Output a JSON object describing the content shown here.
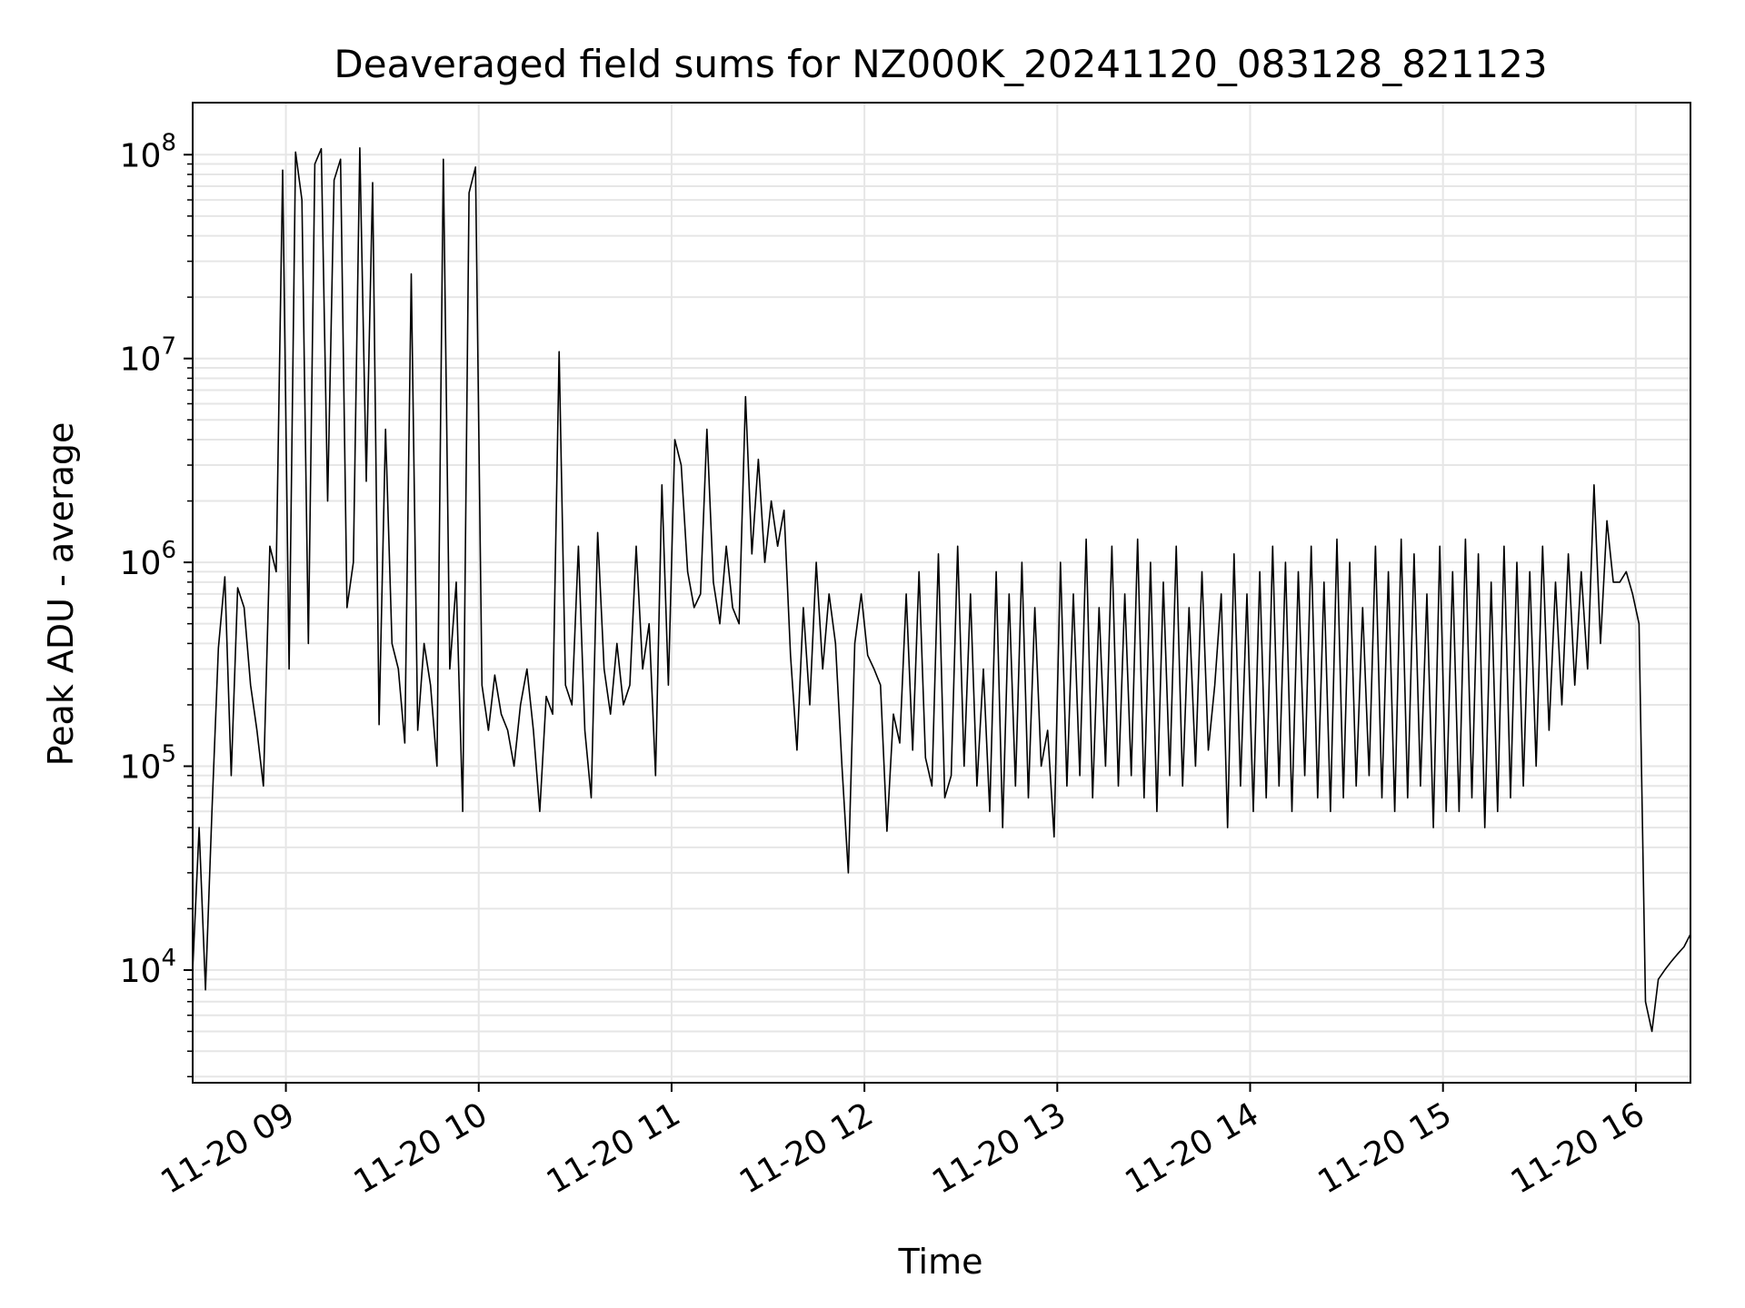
{
  "chart_data": {
    "type": "line",
    "title": "Deaveraged field sums for NZ000K_20241120_083128_821123",
    "xlabel": "Time",
    "ylabel": "Peak ADU - average",
    "yscale": "log",
    "xlim": [
      "2024-11-20 08:31",
      "2024-11-20 16:17"
    ],
    "ylim": [
      2800,
      180000000
    ],
    "grid": true,
    "x_ticks": [
      {
        "value": "2024-11-20 09:00",
        "label": "11-20 09"
      },
      {
        "value": "2024-11-20 10:00",
        "label": "11-20 10"
      },
      {
        "value": "2024-11-20 11:00",
        "label": "11-20 11"
      },
      {
        "value": "2024-11-20 12:00",
        "label": "11-20 12"
      },
      {
        "value": "2024-11-20 13:00",
        "label": "11-20 13"
      },
      {
        "value": "2024-11-20 14:00",
        "label": "11-20 14"
      },
      {
        "value": "2024-11-20 15:00",
        "label": "11-20 15"
      },
      {
        "value": "2024-11-20 16:00",
        "label": "11-20 16"
      }
    ],
    "y_ticks": [
      {
        "value": 10000,
        "base": "10",
        "exp": "4"
      },
      {
        "value": 100000,
        "base": "10",
        "exp": "5"
      },
      {
        "value": 1000000,
        "base": "10",
        "exp": "6"
      },
      {
        "value": 10000000,
        "base": "10",
        "exp": "7"
      },
      {
        "value": 100000000,
        "base": "10",
        "exp": "8"
      }
    ],
    "line_color": "#000000",
    "grid_color": "#e6e6e6",
    "series": [
      {
        "x": [
          "2024-11-20 08:31",
          "2024-11-20 08:33",
          "2024-11-20 08:35",
          "2024-11-20 08:37",
          "2024-11-20 08:39",
          "2024-11-20 08:41",
          "2024-11-20 08:43",
          "2024-11-20 08:45",
          "2024-11-20 08:47",
          "2024-11-20 08:49",
          "2024-11-20 08:51",
          "2024-11-20 08:53",
          "2024-11-20 08:55",
          "2024-11-20 08:57",
          "2024-11-20 08:59",
          "2024-11-20 09:01",
          "2024-11-20 09:03",
          "2024-11-20 09:05",
          "2024-11-20 09:07",
          "2024-11-20 09:09",
          "2024-11-20 09:11",
          "2024-11-20 09:13",
          "2024-11-20 09:15",
          "2024-11-20 09:17",
          "2024-11-20 09:19",
          "2024-11-20 09:21",
          "2024-11-20 09:23",
          "2024-11-20 09:25",
          "2024-11-20 09:27",
          "2024-11-20 09:29",
          "2024-11-20 09:31",
          "2024-11-20 09:33",
          "2024-11-20 09:35",
          "2024-11-20 09:37",
          "2024-11-20 09:39",
          "2024-11-20 09:41",
          "2024-11-20 09:43",
          "2024-11-20 09:45",
          "2024-11-20 09:47",
          "2024-11-20 09:49",
          "2024-11-20 09:51",
          "2024-11-20 09:53",
          "2024-11-20 09:55",
          "2024-11-20 09:57",
          "2024-11-20 09:59",
          "2024-11-20 10:01",
          "2024-11-20 10:03",
          "2024-11-20 10:05",
          "2024-11-20 10:07",
          "2024-11-20 10:09",
          "2024-11-20 10:11",
          "2024-11-20 10:13",
          "2024-11-20 10:15",
          "2024-11-20 10:17",
          "2024-11-20 10:19",
          "2024-11-20 10:21",
          "2024-11-20 10:23",
          "2024-11-20 10:25",
          "2024-11-20 10:27",
          "2024-11-20 10:29",
          "2024-11-20 10:31",
          "2024-11-20 10:33",
          "2024-11-20 10:35",
          "2024-11-20 10:37",
          "2024-11-20 10:39",
          "2024-11-20 10:41",
          "2024-11-20 10:43",
          "2024-11-20 10:45",
          "2024-11-20 10:47",
          "2024-11-20 10:49",
          "2024-11-20 10:51",
          "2024-11-20 10:53",
          "2024-11-20 10:55",
          "2024-11-20 10:57",
          "2024-11-20 10:59",
          "2024-11-20 11:01",
          "2024-11-20 11:03",
          "2024-11-20 11:05",
          "2024-11-20 11:07",
          "2024-11-20 11:09",
          "2024-11-20 11:11",
          "2024-11-20 11:13",
          "2024-11-20 11:15",
          "2024-11-20 11:17",
          "2024-11-20 11:19",
          "2024-11-20 11:21",
          "2024-11-20 11:23",
          "2024-11-20 11:25",
          "2024-11-20 11:27",
          "2024-11-20 11:29",
          "2024-11-20 11:31",
          "2024-11-20 11:33",
          "2024-11-20 11:35",
          "2024-11-20 11:37",
          "2024-11-20 11:39",
          "2024-11-20 11:41",
          "2024-11-20 11:43",
          "2024-11-20 11:45",
          "2024-11-20 11:47",
          "2024-11-20 11:49",
          "2024-11-20 11:51",
          "2024-11-20 11:53",
          "2024-11-20 11:55",
          "2024-11-20 11:57",
          "2024-11-20 11:59",
          "2024-11-20 12:01",
          "2024-11-20 12:03",
          "2024-11-20 12:05",
          "2024-11-20 12:07",
          "2024-11-20 12:09",
          "2024-11-20 12:11",
          "2024-11-20 12:13",
          "2024-11-20 12:15",
          "2024-11-20 12:17",
          "2024-11-20 12:19",
          "2024-11-20 12:21",
          "2024-11-20 12:23",
          "2024-11-20 12:25",
          "2024-11-20 12:27",
          "2024-11-20 12:29",
          "2024-11-20 12:31",
          "2024-11-20 12:33",
          "2024-11-20 12:35",
          "2024-11-20 12:37",
          "2024-11-20 12:39",
          "2024-11-20 12:41",
          "2024-11-20 12:43",
          "2024-11-20 12:45",
          "2024-11-20 12:47",
          "2024-11-20 12:49",
          "2024-11-20 12:51",
          "2024-11-20 12:53",
          "2024-11-20 12:55",
          "2024-11-20 12:57",
          "2024-11-20 12:59",
          "2024-11-20 13:01",
          "2024-11-20 13:03",
          "2024-11-20 13:05",
          "2024-11-20 13:07",
          "2024-11-20 13:09",
          "2024-11-20 13:11",
          "2024-11-20 13:13",
          "2024-11-20 13:15",
          "2024-11-20 13:17",
          "2024-11-20 13:19",
          "2024-11-20 13:21",
          "2024-11-20 13:23",
          "2024-11-20 13:25",
          "2024-11-20 13:27",
          "2024-11-20 13:29",
          "2024-11-20 13:31",
          "2024-11-20 13:33",
          "2024-11-20 13:35",
          "2024-11-20 13:37",
          "2024-11-20 13:39",
          "2024-11-20 13:41",
          "2024-11-20 13:43",
          "2024-11-20 13:45",
          "2024-11-20 13:47",
          "2024-11-20 13:49",
          "2024-11-20 13:51",
          "2024-11-20 13:53",
          "2024-11-20 13:55",
          "2024-11-20 13:57",
          "2024-11-20 13:59",
          "2024-11-20 14:01",
          "2024-11-20 14:03",
          "2024-11-20 14:05",
          "2024-11-20 14:07",
          "2024-11-20 14:09",
          "2024-11-20 14:11",
          "2024-11-20 14:13",
          "2024-11-20 14:15",
          "2024-11-20 14:17",
          "2024-11-20 14:19",
          "2024-11-20 14:21",
          "2024-11-20 14:23",
          "2024-11-20 14:25",
          "2024-11-20 14:27",
          "2024-11-20 14:29",
          "2024-11-20 14:31",
          "2024-11-20 14:33",
          "2024-11-20 14:35",
          "2024-11-20 14:37",
          "2024-11-20 14:39",
          "2024-11-20 14:41",
          "2024-11-20 14:43",
          "2024-11-20 14:45",
          "2024-11-20 14:47",
          "2024-11-20 14:49",
          "2024-11-20 14:51",
          "2024-11-20 14:53",
          "2024-11-20 14:55",
          "2024-11-20 14:57",
          "2024-11-20 14:59",
          "2024-11-20 15:01",
          "2024-11-20 15:03",
          "2024-11-20 15:05",
          "2024-11-20 15:07",
          "2024-11-20 15:09",
          "2024-11-20 15:11",
          "2024-11-20 15:13",
          "2024-11-20 15:15",
          "2024-11-20 15:17",
          "2024-11-20 15:19",
          "2024-11-20 15:21",
          "2024-11-20 15:23",
          "2024-11-20 15:25",
          "2024-11-20 15:27",
          "2024-11-20 15:29",
          "2024-11-20 15:31",
          "2024-11-20 15:33",
          "2024-11-20 15:35",
          "2024-11-20 15:37",
          "2024-11-20 15:39",
          "2024-11-20 15:41",
          "2024-11-20 15:43",
          "2024-11-20 15:45",
          "2024-11-20 15:47",
          "2024-11-20 15:49",
          "2024-11-20 15:51",
          "2024-11-20 15:53",
          "2024-11-20 15:55",
          "2024-11-20 15:57",
          "2024-11-20 15:59",
          "2024-11-20 16:01",
          "2024-11-20 16:03",
          "2024-11-20 16:05",
          "2024-11-20 16:07",
          "2024-11-20 16:09",
          "2024-11-20 16:11",
          "2024-11-20 16:13",
          "2024-11-20 16:15",
          "2024-11-20 16:17"
        ],
        "y": [
          10000,
          50000,
          8000,
          60000,
          380000,
          850000,
          90000,
          750000,
          600000,
          250000,
          150000,
          80000,
          1200000,
          900000,
          84000000,
          300000,
          103000000,
          60000000,
          400000,
          90000000,
          107000000,
          2000000,
          75000000,
          95000000,
          600000,
          1000000,
          108000000,
          2500000,
          73000000,
          160000,
          4500000,
          400000,
          300000,
          130000,
          26000000,
          150000,
          400000,
          250000,
          100000,
          95000000,
          300000,
          800000,
          60000,
          65000000,
          87000000,
          250000,
          150000,
          280000,
          180000,
          150000,
          100000,
          200000,
          300000,
          150000,
          60000,
          220000,
          180000,
          10800000,
          250000,
          200000,
          1200000,
          150000,
          70000,
          1400000,
          300000,
          180000,
          400000,
          200000,
          250000,
          1200000,
          300000,
          500000,
          90000,
          2400000,
          250000,
          4000000,
          3000000,
          900000,
          600000,
          700000,
          4500000,
          800000,
          500000,
          1200000,
          600000,
          500000,
          6500000,
          1100000,
          3200000,
          1000000,
          2000000,
          1200000,
          1800000,
          350000,
          120000,
          600000,
          200000,
          1000000,
          300000,
          700000,
          400000,
          100000,
          30000,
          400000,
          700000,
          350000,
          300000,
          250000,
          48000,
          180000,
          130000,
          700000,
          120000,
          900000,
          110000,
          80000,
          1100000,
          70000,
          90000,
          1200000,
          100000,
          700000,
          80000,
          300000,
          60000,
          900000,
          50000,
          700000,
          80000,
          1000000,
          70000,
          600000,
          100000,
          150000,
          45000,
          1000000,
          80000,
          700000,
          90000,
          1300000,
          70000,
          600000,
          100000,
          1200000,
          80000,
          700000,
          90000,
          1300000,
          70000,
          1000000,
          60000,
          800000,
          90000,
          1200000,
          80000,
          600000,
          100000,
          900000,
          120000,
          250000,
          700000,
          50000,
          1100000,
          80000,
          700000,
          60000,
          900000,
          70000,
          1200000,
          80000,
          1000000,
          60000,
          900000,
          90000,
          1200000,
          70000,
          800000,
          60000,
          1300000,
          70000,
          1000000,
          80000,
          600000,
          90000,
          1200000,
          70000,
          900000,
          60000,
          1300000,
          70000,
          1100000,
          80000,
          700000,
          50000,
          1200000,
          60000,
          900000,
          60000,
          1300000,
          70000,
          1100000,
          50000,
          800000,
          60000,
          1200000,
          70000,
          1000000,
          80000,
          900000,
          100000,
          1200000,
          150000,
          800000,
          200000,
          1100000,
          250000,
          900000,
          300000,
          2400000,
          400000,
          1600000,
          800000,
          800000,
          900000,
          700000,
          500000,
          7000,
          5000,
          9000,
          10000,
          11000,
          12000,
          13000,
          15000
        ]
      }
    ]
  }
}
